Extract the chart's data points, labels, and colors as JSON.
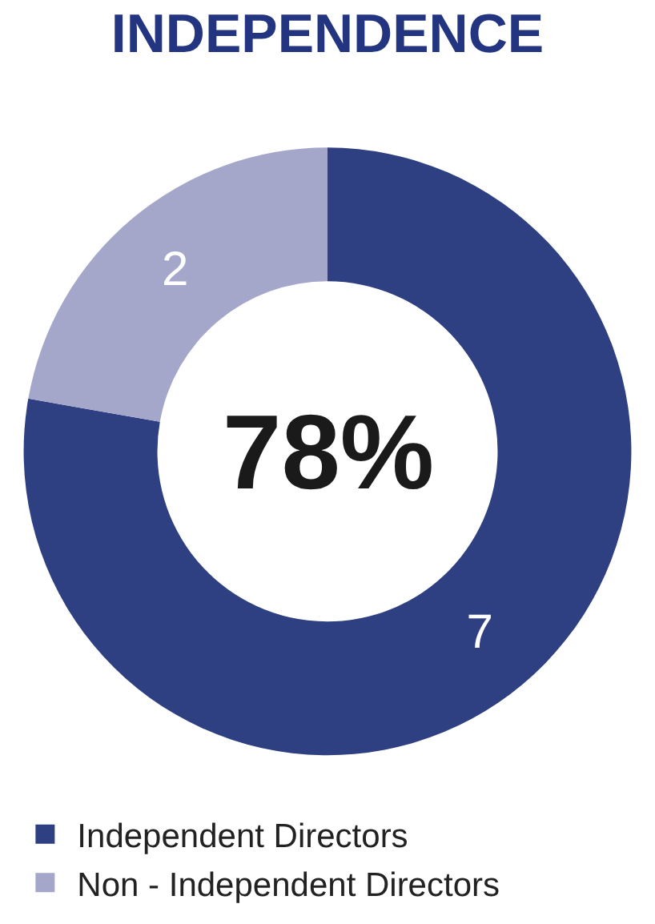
{
  "chart_data": {
    "type": "donut",
    "title": "INDEPENDENCE",
    "categories": [
      "Independent Directors",
      "Non - Independent Directors"
    ],
    "values": [
      7,
      2
    ],
    "colors": [
      "#2e3f82",
      "#a4a7ca"
    ],
    "data_labels": true,
    "annotations": [
      "78%"
    ],
    "legend": "bottom"
  }
}
